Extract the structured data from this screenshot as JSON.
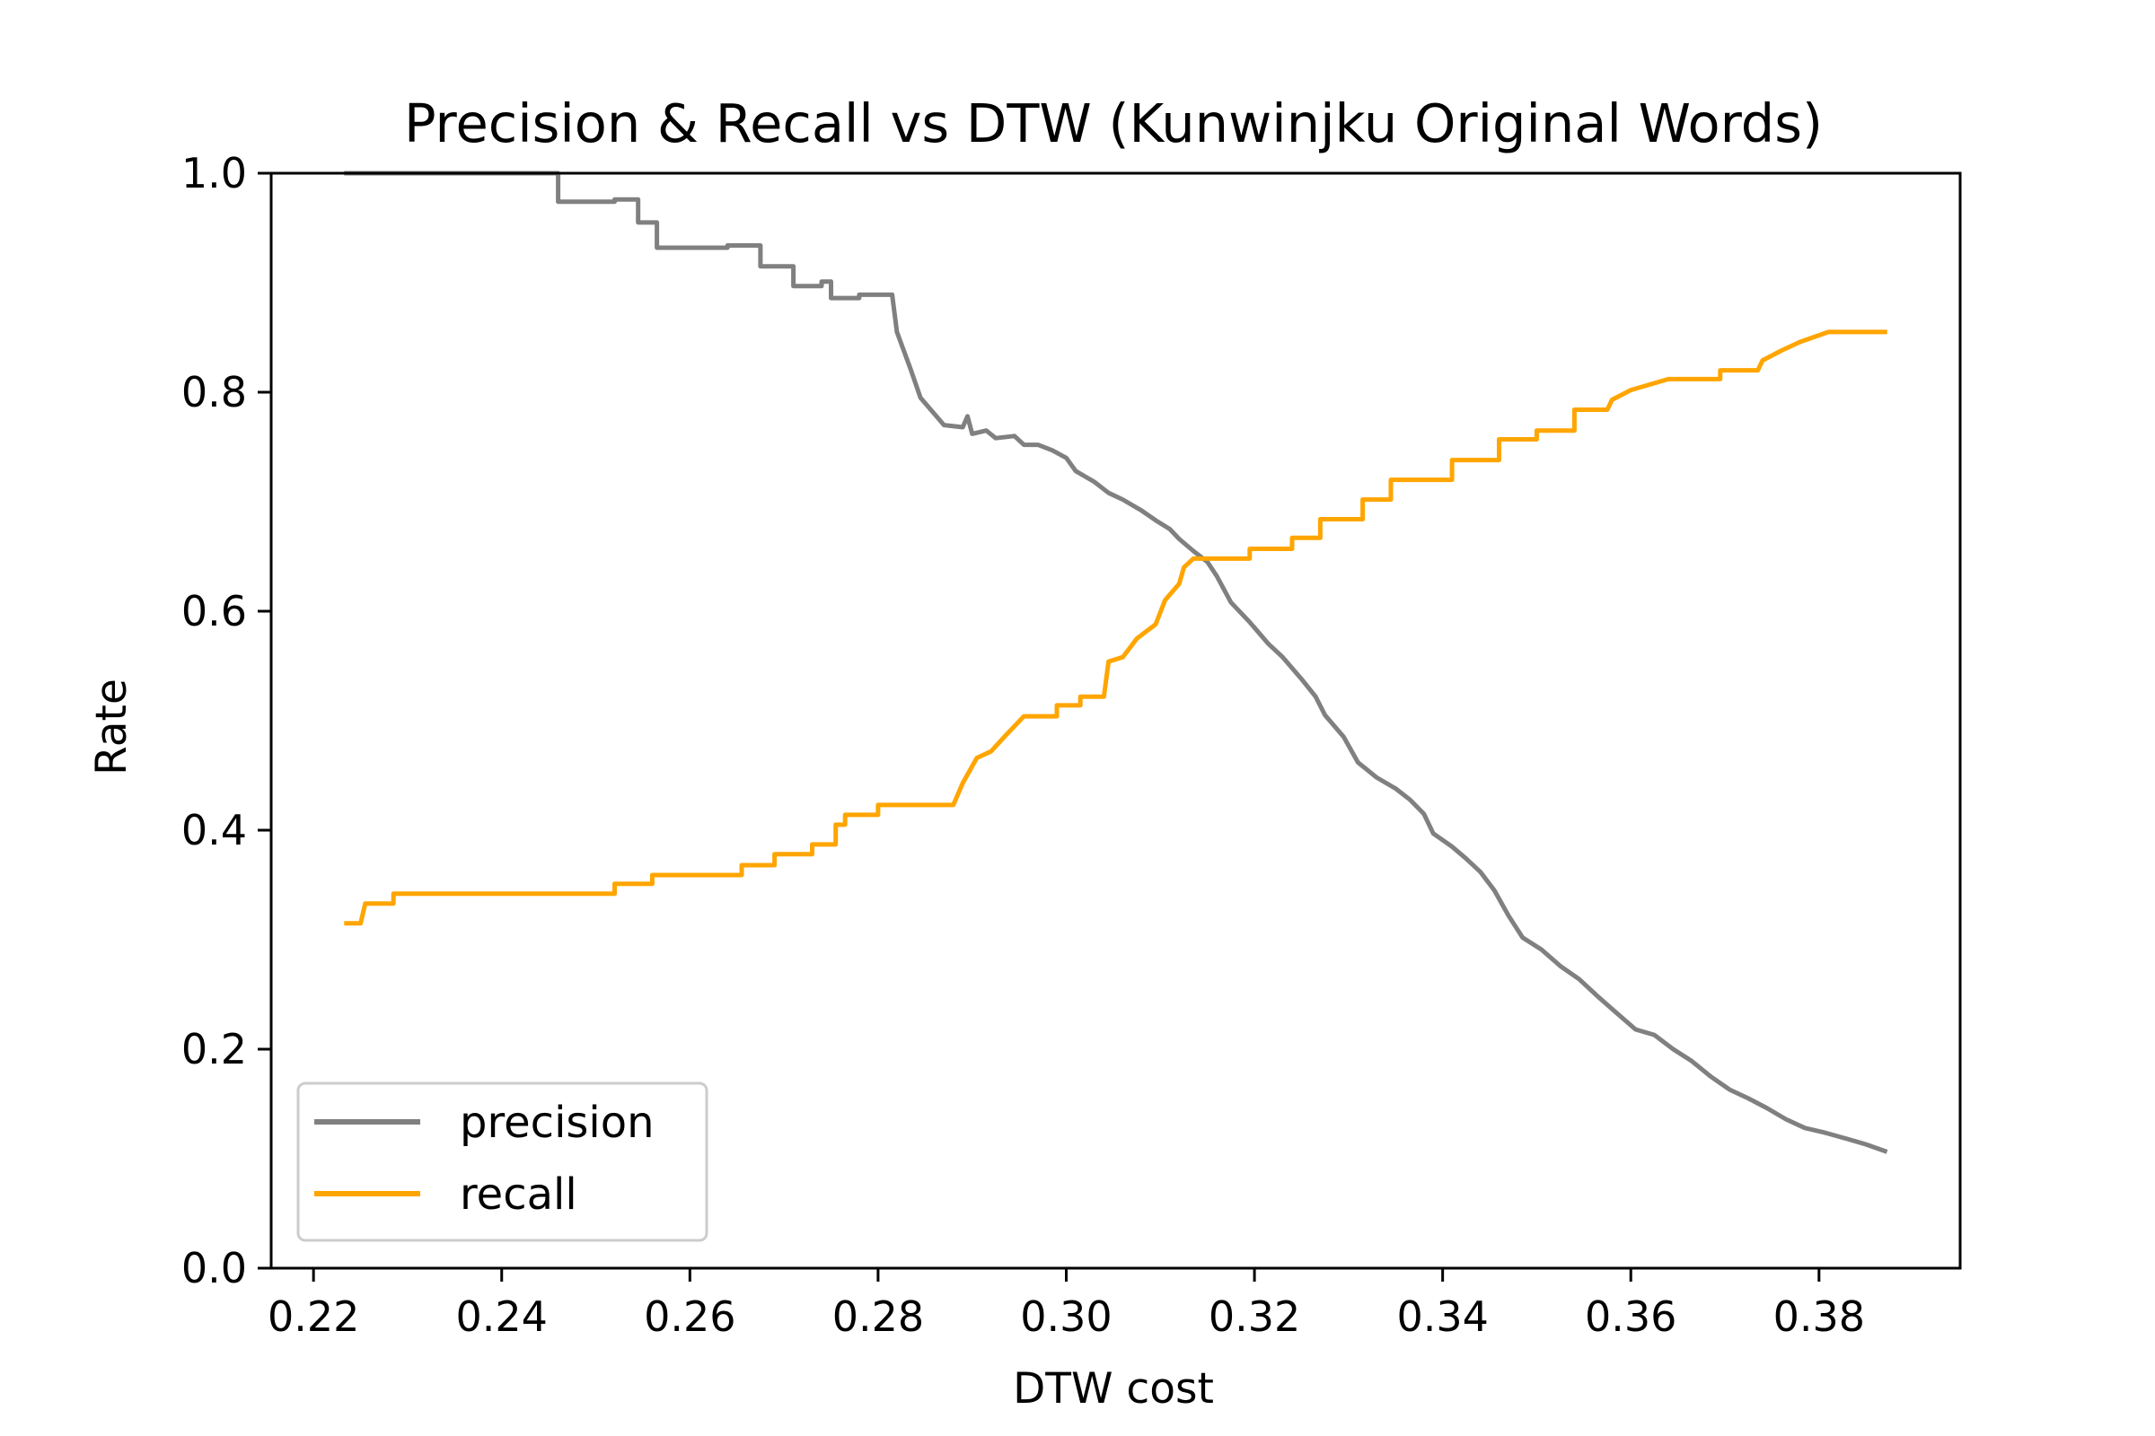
{
  "chart_data": {
    "type": "line",
    "title": "Precision & Recall vs DTW  (Kunwinjku Original Words)",
    "xlabel": "DTW cost",
    "ylabel": "Rate",
    "xlim": [
      0.2155,
      0.395
    ],
    "ylim": [
      0.0,
      1.0
    ],
    "xticks": [
      0.22,
      0.24,
      0.26,
      0.28,
      0.3,
      0.32,
      0.34,
      0.36,
      0.38
    ],
    "xtick_labels": [
      "0.22",
      "0.24",
      "0.26",
      "0.28",
      "0.30",
      "0.32",
      "0.34",
      "0.36",
      "0.38"
    ],
    "yticks": [
      0.0,
      0.2,
      0.4,
      0.6,
      0.8,
      1.0
    ],
    "ytick_labels": [
      "0.0",
      "0.2",
      "0.4",
      "0.6",
      "0.8",
      "1.0"
    ],
    "grid": false,
    "legend_position": "lower-left",
    "series": [
      {
        "name": "precision",
        "color": "#808080",
        "points": [
          [
            0.2235,
            1.0
          ],
          [
            0.246,
            1.0
          ],
          [
            0.246,
            0.974
          ],
          [
            0.252,
            0.974
          ],
          [
            0.252,
            0.976
          ],
          [
            0.2545,
            0.976
          ],
          [
            0.2545,
            0.955
          ],
          [
            0.2565,
            0.955
          ],
          [
            0.2565,
            0.932
          ],
          [
            0.264,
            0.932
          ],
          [
            0.264,
            0.934
          ],
          [
            0.2675,
            0.934
          ],
          [
            0.2675,
            0.915
          ],
          [
            0.271,
            0.915
          ],
          [
            0.271,
            0.897
          ],
          [
            0.274,
            0.897
          ],
          [
            0.274,
            0.901
          ],
          [
            0.275,
            0.901
          ],
          [
            0.275,
            0.886
          ],
          [
            0.278,
            0.886
          ],
          [
            0.278,
            0.889
          ],
          [
            0.2815,
            0.889
          ],
          [
            0.282,
            0.855
          ],
          [
            0.2835,
            0.82
          ],
          [
            0.2845,
            0.795
          ],
          [
            0.286,
            0.78
          ],
          [
            0.287,
            0.77
          ],
          [
            0.289,
            0.768
          ],
          [
            0.2895,
            0.778
          ],
          [
            0.29,
            0.762
          ],
          [
            0.2915,
            0.765
          ],
          [
            0.2925,
            0.758
          ],
          [
            0.2945,
            0.76
          ],
          [
            0.2955,
            0.752
          ],
          [
            0.297,
            0.752
          ],
          [
            0.2985,
            0.747
          ],
          [
            0.3,
            0.74
          ],
          [
            0.301,
            0.728
          ],
          [
            0.303,
            0.718
          ],
          [
            0.3045,
            0.708
          ],
          [
            0.306,
            0.702
          ],
          [
            0.308,
            0.692
          ],
          [
            0.3095,
            0.683
          ],
          [
            0.311,
            0.675
          ],
          [
            0.312,
            0.666
          ],
          [
            0.3135,
            0.655
          ],
          [
            0.315,
            0.645
          ],
          [
            0.316,
            0.632
          ],
          [
            0.3175,
            0.608
          ],
          [
            0.3195,
            0.59
          ],
          [
            0.3215,
            0.57
          ],
          [
            0.323,
            0.558
          ],
          [
            0.325,
            0.538
          ],
          [
            0.3265,
            0.522
          ],
          [
            0.3275,
            0.505
          ],
          [
            0.3295,
            0.485
          ],
          [
            0.331,
            0.462
          ],
          [
            0.333,
            0.448
          ],
          [
            0.335,
            0.438
          ],
          [
            0.3365,
            0.428
          ],
          [
            0.338,
            0.415
          ],
          [
            0.339,
            0.397
          ],
          [
            0.341,
            0.385
          ],
          [
            0.3425,
            0.374
          ],
          [
            0.344,
            0.362
          ],
          [
            0.3455,
            0.345
          ],
          [
            0.347,
            0.322
          ],
          [
            0.3485,
            0.302
          ],
          [
            0.3505,
            0.291
          ],
          [
            0.3525,
            0.276
          ],
          [
            0.3545,
            0.264
          ],
          [
            0.3565,
            0.248
          ],
          [
            0.3585,
            0.233
          ],
          [
            0.3605,
            0.218
          ],
          [
            0.3625,
            0.213
          ],
          [
            0.3645,
            0.2
          ],
          [
            0.3665,
            0.189
          ],
          [
            0.3685,
            0.175
          ],
          [
            0.3705,
            0.163
          ],
          [
            0.3725,
            0.155
          ],
          [
            0.3745,
            0.146
          ],
          [
            0.3765,
            0.136
          ],
          [
            0.3785,
            0.128
          ],
          [
            0.3805,
            0.124
          ],
          [
            0.383,
            0.118
          ],
          [
            0.385,
            0.113
          ],
          [
            0.387,
            0.107
          ]
        ]
      },
      {
        "name": "recall",
        "color": "#FFA500",
        "points": [
          [
            0.2235,
            0.315
          ],
          [
            0.225,
            0.315
          ],
          [
            0.2255,
            0.333
          ],
          [
            0.2285,
            0.333
          ],
          [
            0.2285,
            0.342
          ],
          [
            0.252,
            0.342
          ],
          [
            0.252,
            0.351
          ],
          [
            0.256,
            0.351
          ],
          [
            0.256,
            0.359
          ],
          [
            0.2655,
            0.359
          ],
          [
            0.2655,
            0.368
          ],
          [
            0.269,
            0.368
          ],
          [
            0.269,
            0.378
          ],
          [
            0.273,
            0.378
          ],
          [
            0.273,
            0.387
          ],
          [
            0.2755,
            0.387
          ],
          [
            0.2755,
            0.405
          ],
          [
            0.2765,
            0.405
          ],
          [
            0.2765,
            0.414
          ],
          [
            0.28,
            0.414
          ],
          [
            0.28,
            0.423
          ],
          [
            0.288,
            0.423
          ],
          [
            0.289,
            0.443
          ],
          [
            0.2905,
            0.466
          ],
          [
            0.292,
            0.472
          ],
          [
            0.2935,
            0.486
          ],
          [
            0.2955,
            0.504
          ],
          [
            0.299,
            0.504
          ],
          [
            0.299,
            0.514
          ],
          [
            0.3015,
            0.514
          ],
          [
            0.3015,
            0.522
          ],
          [
            0.304,
            0.522
          ],
          [
            0.3045,
            0.554
          ],
          [
            0.306,
            0.558
          ],
          [
            0.3075,
            0.575
          ],
          [
            0.3095,
            0.588
          ],
          [
            0.3105,
            0.61
          ],
          [
            0.312,
            0.625
          ],
          [
            0.3125,
            0.64
          ],
          [
            0.3135,
            0.648
          ],
          [
            0.3195,
            0.648
          ],
          [
            0.3195,
            0.657
          ],
          [
            0.324,
            0.657
          ],
          [
            0.324,
            0.667
          ],
          [
            0.327,
            0.667
          ],
          [
            0.327,
            0.684
          ],
          [
            0.3315,
            0.684
          ],
          [
            0.3315,
            0.702
          ],
          [
            0.3345,
            0.702
          ],
          [
            0.3345,
            0.72
          ],
          [
            0.341,
            0.72
          ],
          [
            0.341,
            0.738
          ],
          [
            0.346,
            0.738
          ],
          [
            0.346,
            0.757
          ],
          [
            0.35,
            0.757
          ],
          [
            0.35,
            0.765
          ],
          [
            0.354,
            0.765
          ],
          [
            0.354,
            0.784
          ],
          [
            0.3575,
            0.784
          ],
          [
            0.358,
            0.793
          ],
          [
            0.36,
            0.802
          ],
          [
            0.364,
            0.812
          ],
          [
            0.3695,
            0.812
          ],
          [
            0.3695,
            0.82
          ],
          [
            0.3735,
            0.82
          ],
          [
            0.374,
            0.829
          ],
          [
            0.376,
            0.838
          ],
          [
            0.378,
            0.846
          ],
          [
            0.381,
            0.855
          ],
          [
            0.387,
            0.855
          ]
        ]
      }
    ]
  }
}
